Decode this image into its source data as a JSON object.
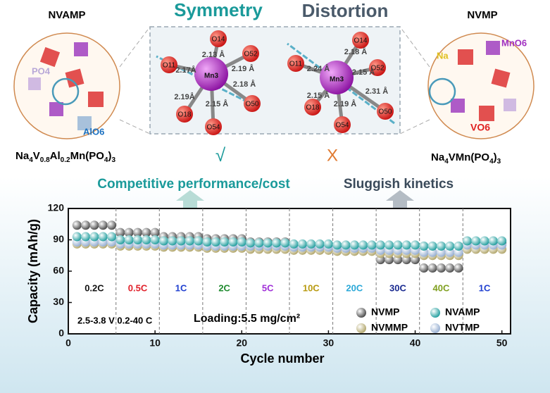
{
  "chart_data": {
    "type": "scatter",
    "ylabel": "Capacity (mAh/g)",
    "xlabel": "Cycle number",
    "xlim": [
      0,
      51
    ],
    "xticks": [
      0,
      10,
      20,
      30,
      40,
      50
    ],
    "ylim": [
      0,
      120
    ],
    "yticks": [
      0,
      30,
      60,
      90,
      120
    ],
    "x": [
      1,
      2,
      3,
      4,
      5,
      6,
      7,
      8,
      9,
      10,
      11,
      12,
      13,
      14,
      15,
      16,
      17,
      18,
      19,
      20,
      21,
      22,
      23,
      24,
      25,
      26,
      27,
      28,
      29,
      30,
      31,
      32,
      33,
      34,
      35,
      36,
      37,
      38,
      39,
      40,
      41,
      42,
      43,
      44,
      45,
      46,
      47,
      48,
      49,
      50
    ],
    "series": [
      {
        "name": "NVMP",
        "color": "#454545",
        "values": [
          104,
          104,
          104,
          104,
          104,
          97,
          97,
          97,
          97,
          97,
          93,
          93,
          93,
          93,
          93,
          91,
          91,
          91,
          91,
          91,
          88,
          88,
          88,
          88,
          88,
          85,
          85,
          85,
          85,
          85,
          82,
          82,
          82,
          82,
          82,
          71,
          71,
          71,
          71,
          71,
          63,
          63,
          63,
          63,
          63,
          87,
          87,
          87,
          87,
          87
        ]
      },
      {
        "name": "NVMMP",
        "color": "#b0a468",
        "values": [
          86,
          86,
          86,
          86,
          86,
          84,
          84,
          84,
          84,
          84,
          83,
          83,
          83,
          83,
          83,
          82,
          82,
          82,
          82,
          82,
          81,
          81,
          81,
          81,
          81,
          80,
          80,
          80,
          80,
          80,
          79,
          79,
          79,
          79,
          79,
          77,
          77,
          77,
          77,
          77,
          75,
          75,
          75,
          75,
          75,
          81,
          81,
          81,
          81,
          81
        ]
      },
      {
        "name": "NVTMP",
        "color": "#93acd0",
        "values": [
          88,
          88,
          88,
          88,
          88,
          86,
          86,
          86,
          86,
          86,
          85,
          85,
          85,
          85,
          85,
          84,
          84,
          84,
          84,
          84,
          84,
          84,
          84,
          84,
          84,
          83,
          83,
          83,
          83,
          83,
          82,
          82,
          82,
          82,
          82,
          80,
          80,
          80,
          80,
          80,
          78,
          78,
          78,
          78,
          78,
          85,
          85,
          85,
          85,
          85
        ]
      },
      {
        "name": "NVAMP",
        "color": "#1c9c9c",
        "values": [
          93,
          93,
          93,
          93,
          93,
          90,
          90,
          90,
          90,
          90,
          89,
          89,
          89,
          89,
          89,
          88,
          88,
          88,
          88,
          88,
          87,
          87,
          87,
          87,
          87,
          86,
          86,
          86,
          86,
          86,
          85,
          85,
          85,
          85,
          85,
          85,
          85,
          85,
          85,
          85,
          84,
          84,
          84,
          84,
          84,
          89,
          89,
          89,
          89,
          89
        ]
      }
    ],
    "rate_segments": [
      {
        "label": "0.2C",
        "color": "#111111",
        "cycles": [
          1,
          5
        ]
      },
      {
        "label": "0.5C",
        "color": "#e0202a",
        "cycles": [
          6,
          10
        ]
      },
      {
        "label": "1C",
        "color": "#1f3fd0",
        "cycles": [
          11,
          15
        ]
      },
      {
        "label": "2C",
        "color": "#1e8a2e",
        "cycles": [
          16,
          20
        ]
      },
      {
        "label": "5C",
        "color": "#a030d8",
        "cycles": [
          21,
          25
        ]
      },
      {
        "label": "10C",
        "color": "#b89a10",
        "cycles": [
          26,
          30
        ]
      },
      {
        "label": "20C",
        "color": "#2aa8d8",
        "cycles": [
          31,
          35
        ]
      },
      {
        "label": "30C",
        "color": "#1a2a90",
        "cycles": [
          36,
          40
        ]
      },
      {
        "label": "40C",
        "color": "#80a020",
        "cycles": [
          41,
          45
        ]
      },
      {
        "label": "1C",
        "color": "#1f3fd0",
        "cycles": [
          46,
          50
        ]
      }
    ],
    "annotations": [
      "2.5-3.8 V 0.2-40 C",
      "Loading:5.5 mg/cm²"
    ]
  },
  "schematic": {
    "left_label": "NVAMP",
    "right_label": "NVMP",
    "symmetry": "Symmetry",
    "distortion": "Distortion",
    "left_tags": [
      "PO4",
      "AlO6"
    ],
    "right_tags": [
      "Na",
      "MnO6",
      "VO6"
    ],
    "left_formula": [
      {
        "t": "Na"
      },
      {
        "t": "4",
        "sub": true
      },
      {
        "t": "V"
      },
      {
        "t": "0.8",
        "sub": true
      },
      {
        "t": "Al"
      },
      {
        "t": "0.2",
        "sub": true
      },
      {
        "t": "Mn(PO"
      },
      {
        "t": "4",
        "sub": true
      },
      {
        "t": ")"
      },
      {
        "t": "3",
        "sub": true
      }
    ],
    "right_formula": [
      {
        "t": "Na"
      },
      {
        "t": "4",
        "sub": true
      },
      {
        "t": "VMn(PO"
      },
      {
        "t": "4",
        "sub": true
      },
      {
        "t": ")"
      },
      {
        "t": "3",
        "sub": true
      }
    ],
    "check": "√",
    "cross": "X",
    "left_result": "Competitive performance/cost",
    "right_result": "Sluggish kinetics",
    "left_octahedron": {
      "center": "Mn3",
      "atoms": [
        "O14",
        "O52",
        "O11",
        "O50",
        "O18",
        "O54"
      ],
      "distances": [
        "2.13 Å",
        "2.19 Å",
        "2.17Å",
        "2.18 Å",
        "2.19Å",
        "2.15 Å"
      ]
    },
    "right_octahedron": {
      "center": "Mn3",
      "atoms": [
        "O14",
        "O52",
        "O11",
        "O50",
        "O18",
        "O54"
      ],
      "distances": [
        "2.18 Å",
        "2.15 Å",
        "2.24 Å",
        "2.31 Å",
        "2.15 Å",
        "2.19 Å"
      ]
    }
  }
}
